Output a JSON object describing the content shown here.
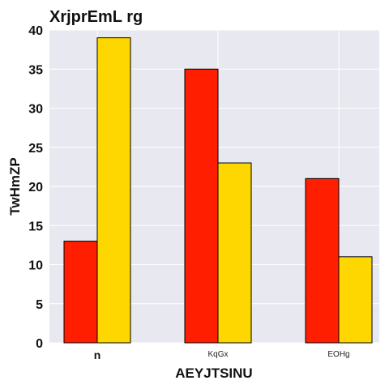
{
  "chart_data": {
    "type": "bar",
    "title": "XrjprEmL rg",
    "xlabel": "AEYJTSINU",
    "ylabel": "TwHmZP",
    "categories": [
      "n",
      "KqGx",
      "EOHg"
    ],
    "series": [
      {
        "values": [
          13,
          35,
          21
        ],
        "color": "#ff1e00"
      },
      {
        "values": [
          39,
          23,
          11
        ],
        "color": "#ffd700"
      }
    ],
    "ylim": [
      0,
      40
    ],
    "yticks": [
      0,
      5,
      10,
      15,
      20,
      25,
      30,
      35,
      40
    ],
    "grid": true,
    "legend": "none",
    "background": "#e8e8f0"
  }
}
